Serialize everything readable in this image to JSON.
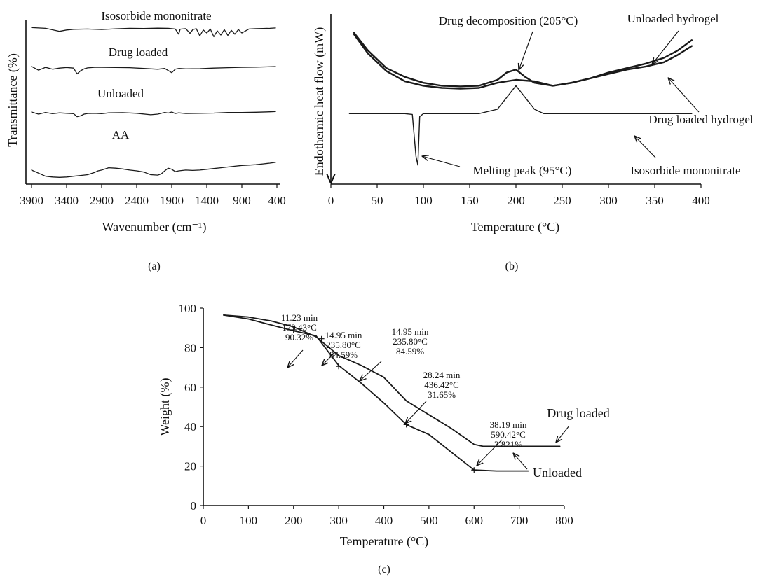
{
  "chart_data": [
    {
      "panel": "(a)",
      "type": "line",
      "xlabel": "Wavenumber (cm⁻¹)",
      "ylabel": "Transmittance (%)",
      "x_ticks": [
        "3900",
        "3400",
        "2900",
        "2400",
        "1900",
        "1400",
        "900",
        "400"
      ],
      "xlim": [
        3900,
        400
      ],
      "series": [
        {
          "name": "Isosorbide mononitrate",
          "x": [
            3900,
            3700,
            3500,
            3400,
            3300,
            3100,
            2900,
            2700,
            2500,
            2300,
            2100,
            1950,
            1850,
            1800,
            1780,
            1700,
            1640,
            1600,
            1550,
            1500,
            1450,
            1400,
            1350,
            1300,
            1250,
            1200,
            1150,
            1100,
            1050,
            1000,
            950,
            900,
            800,
            700,
            600,
            500,
            420
          ],
          "y": [
            0.94,
            0.9,
            0.72,
            0.8,
            0.84,
            0.86,
            0.83,
            0.87,
            0.9,
            0.89,
            0.91,
            0.9,
            0.86,
            0.55,
            0.85,
            0.88,
            0.6,
            0.82,
            0.88,
            0.45,
            0.8,
            0.62,
            0.86,
            0.4,
            0.75,
            0.5,
            0.82,
            0.48,
            0.78,
            0.55,
            0.83,
            0.62,
            0.86,
            0.88,
            0.89,
            0.9,
            0.92
          ]
        },
        {
          "name": "Drug loaded",
          "x": [
            3900,
            3800,
            3700,
            3600,
            3500,
            3400,
            3300,
            3250,
            3200,
            3150,
            3100,
            3000,
            2900,
            2700,
            2500,
            2300,
            2100,
            2000,
            1900,
            1850,
            1800,
            1700,
            1500,
            1300,
            1100,
            900,
            700,
            500,
            420
          ],
          "y": [
            0.75,
            0.55,
            0.7,
            0.6,
            0.66,
            0.69,
            0.66,
            0.35,
            0.52,
            0.62,
            0.67,
            0.7,
            0.7,
            0.69,
            0.68,
            0.64,
            0.6,
            0.64,
            0.42,
            0.6,
            0.64,
            0.62,
            0.63,
            0.66,
            0.68,
            0.7,
            0.71,
            0.73,
            0.74
          ]
        },
        {
          "name": "Unloaded",
          "x": [
            3900,
            3800,
            3700,
            3600,
            3500,
            3400,
            3300,
            3250,
            3200,
            3150,
            3100,
            3000,
            2900,
            2800,
            2600,
            2400,
            2200,
            2100,
            2000,
            1950,
            1900,
            1850,
            1800,
            1700,
            1500,
            1300,
            1100,
            900,
            700,
            500,
            420
          ],
          "y": [
            0.5,
            0.4,
            0.48,
            0.42,
            0.46,
            0.44,
            0.42,
            0.28,
            0.32,
            0.4,
            0.43,
            0.44,
            0.42,
            0.46,
            0.47,
            0.44,
            0.37,
            0.4,
            0.48,
            0.45,
            0.5,
            0.43,
            0.46,
            0.43,
            0.44,
            0.45,
            0.48,
            0.48,
            0.49,
            0.51,
            0.52
          ]
        },
        {
          "name": "AA",
          "x": [
            3900,
            3800,
            3700,
            3600,
            3500,
            3400,
            3300,
            3200,
            3100,
            3000,
            2950,
            2900,
            2800,
            2700,
            2600,
            2500,
            2400,
            2300,
            2200,
            2100,
            2050,
            2000,
            1950,
            1900,
            1850,
            1800,
            1700,
            1600,
            1500,
            1400,
            1300,
            1200,
            1100,
            1000,
            900,
            800,
            700,
            600,
            500,
            420
          ],
          "y": [
            0.22,
            0.14,
            0.06,
            0.04,
            0.03,
            0.04,
            0.06,
            0.08,
            0.1,
            0.16,
            0.2,
            0.22,
            0.28,
            0.27,
            0.25,
            0.22,
            0.2,
            0.17,
            0.1,
            0.09,
            0.12,
            0.2,
            0.27,
            0.24,
            0.18,
            0.2,
            0.22,
            0.21,
            0.22,
            0.24,
            0.26,
            0.28,
            0.3,
            0.32,
            0.34,
            0.35,
            0.36,
            0.38,
            0.4,
            0.42
          ]
        }
      ]
    },
    {
      "panel": "(b)",
      "type": "line",
      "xlabel": "Temperature (°C)",
      "ylabel": "Endothermic heat flow (mW)",
      "x_ticks": [
        "0",
        "50",
        "100",
        "150",
        "200",
        "250",
        "300",
        "350",
        "400"
      ],
      "xlim": [
        0,
        400
      ],
      "annotations": [
        "Drug decomposition (205°C)",
        "Unloaded hydrogel",
        "Drug loaded hydrogel",
        "Melting peak (95°C)",
        "Isosorbide mononitrate"
      ],
      "series": [
        {
          "name": "Unloaded hydrogel",
          "x": [
            25,
            40,
            60,
            80,
            100,
            120,
            140,
            160,
            180,
            190,
            200,
            210,
            220,
            240,
            260,
            280,
            300,
            320,
            340,
            360,
            375,
            390
          ],
          "y": [
            0.92,
            0.8,
            0.68,
            0.62,
            0.58,
            0.56,
            0.555,
            0.56,
            0.6,
            0.65,
            0.67,
            0.62,
            0.58,
            0.56,
            0.58,
            0.61,
            0.65,
            0.68,
            0.71,
            0.75,
            0.8,
            0.87
          ]
        },
        {
          "name": "Drug loaded hydrogel",
          "x": [
            25,
            40,
            60,
            80,
            100,
            120,
            140,
            160,
            180,
            200,
            220,
            240,
            260,
            280,
            300,
            320,
            340,
            360,
            375,
            390
          ],
          "y": [
            0.91,
            0.78,
            0.66,
            0.59,
            0.56,
            0.545,
            0.54,
            0.545,
            0.58,
            0.6,
            0.59,
            0.56,
            0.58,
            0.61,
            0.64,
            0.67,
            0.69,
            0.72,
            0.77,
            0.83
          ]
        },
        {
          "name": "Isosorbide mononitrate",
          "x": [
            20,
            80,
            88,
            92,
            94,
            96,
            100,
            120,
            160,
            180,
            190,
            200,
            210,
            220,
            230,
            260,
            300,
            340,
            390
          ],
          "y": [
            0.37,
            0.37,
            0.365,
            0.08,
            0.02,
            0.35,
            0.37,
            0.37,
            0.37,
            0.4,
            0.48,
            0.56,
            0.48,
            0.4,
            0.37,
            0.37,
            0.37,
            0.37,
            0.37
          ]
        }
      ]
    },
    {
      "panel": "(c)",
      "type": "line",
      "xlabel": "Temperature (°C)",
      "ylabel": "Weight (%)",
      "x_ticks": [
        "0",
        "100",
        "200",
        "300",
        "400",
        "500",
        "600",
        "700",
        "800"
      ],
      "y_ticks": [
        "0",
        "20",
        "40",
        "60",
        "80",
        "100"
      ],
      "xlim": [
        0,
        800
      ],
      "ylim": [
        0,
        100
      ],
      "series": [
        {
          "name": "Drug loaded",
          "x": [
            45,
            100,
            150,
            200,
            250,
            300,
            350,
            400,
            450,
            500,
            550,
            600,
            620,
            700,
            790
          ],
          "y": [
            96.5,
            95.5,
            93.5,
            90.5,
            85.5,
            76,
            71,
            65,
            53,
            46,
            39,
            31,
            30,
            30,
            30
          ]
        },
        {
          "name": "Unloaded",
          "x": [
            45,
            100,
            150,
            200,
            250,
            300,
            350,
            400,
            450,
            500,
            550,
            600,
            650,
            720
          ],
          "y": [
            96.5,
            94.5,
            91.5,
            88.5,
            86,
            71,
            62,
            52,
            41,
            36,
            27,
            18,
            17.5,
            17.5
          ]
        }
      ],
      "annotations": [
        {
          "lines": [
            "11.23 min",
            "179.43°C",
            "90.32%"
          ]
        },
        {
          "lines": [
            "14.95 min",
            "235.80°C",
            "84.59%"
          ]
        },
        {
          "lines": [
            "14.95 min",
            "235.80°C",
            "84.59%"
          ]
        },
        {
          "lines": [
            "28.24 min",
            "436.42°C",
            "31.65%"
          ]
        },
        {
          "lines": [
            "38.19 min",
            "590.42°C",
            "3.821%"
          ]
        }
      ],
      "legend_labels": [
        "Drug loaded",
        "Unloaded"
      ]
    }
  ]
}
